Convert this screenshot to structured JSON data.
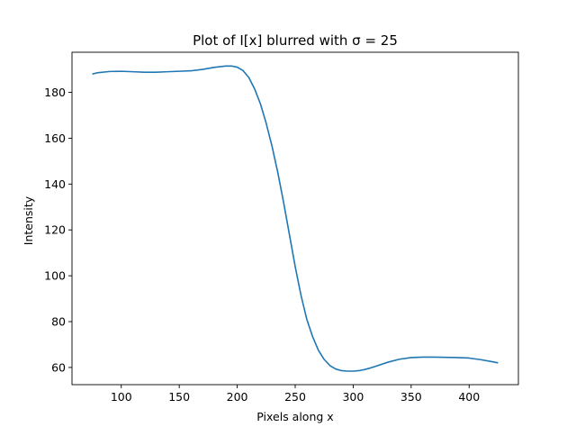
{
  "chart_data": {
    "type": "line",
    "title": "Plot of I[x] blurred with σ = 25",
    "xlabel": "Pixels along x",
    "ylabel": "Intensity",
    "xlim": [
      57.5,
      442.5
    ],
    "ylim": [
      52.5,
      197.5
    ],
    "xticks": [
      100,
      150,
      200,
      250,
      300,
      350,
      400
    ],
    "yticks": [
      60,
      80,
      100,
      120,
      140,
      160,
      180
    ],
    "grid": false,
    "line_color": "#1f77b4",
    "series": [
      {
        "x": [
          75,
          80,
          90,
          100,
          110,
          120,
          130,
          140,
          150,
          160,
          170,
          180,
          190,
          195,
          200,
          205,
          210,
          215,
          220,
          225,
          230,
          235,
          240,
          245,
          250,
          255,
          260,
          265,
          270,
          275,
          280,
          285,
          290,
          295,
          300,
          305,
          310,
          315,
          320,
          330,
          340,
          350,
          360,
          370,
          380,
          390,
          400,
          410,
          420,
          425
        ],
        "y": [
          188,
          188.6,
          189.1,
          189.2,
          189.0,
          188.8,
          188.8,
          189.0,
          189.2,
          189.4,
          190.0,
          190.9,
          191.5,
          191.5,
          191.0,
          189.5,
          186.5,
          181.5,
          175.0,
          166.5,
          156.5,
          145.0,
          132.0,
          118.0,
          104.0,
          91.5,
          81.0,
          73.5,
          67.5,
          63.5,
          60.8,
          59.3,
          58.6,
          58.4,
          58.4,
          58.6,
          59.1,
          59.8,
          60.6,
          62.3,
          63.6,
          64.3,
          64.5,
          64.5,
          64.4,
          64.3,
          64.1,
          63.4,
          62.5,
          62.0
        ]
      }
    ]
  }
}
